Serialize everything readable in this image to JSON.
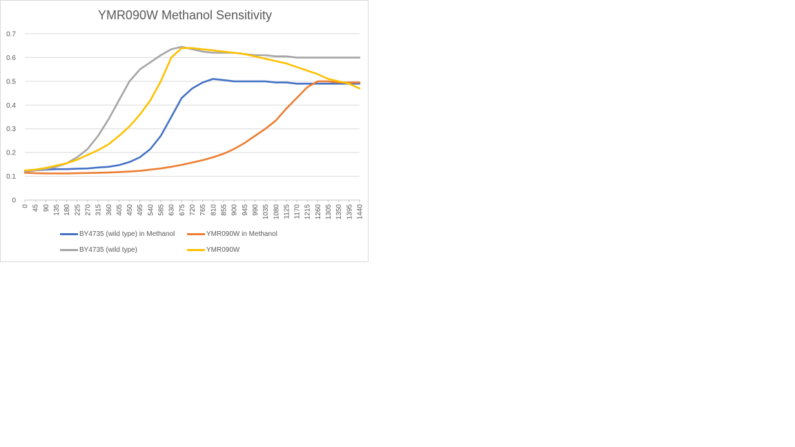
{
  "chart_data": {
    "type": "line",
    "title": "YMR090W Methanol Sensitivity",
    "xlabel": "",
    "ylabel": "",
    "ylim": [
      0,
      0.7
    ],
    "xlim": [
      0,
      1440
    ],
    "yticks": [
      "0",
      "0.1",
      "0.2",
      "0.3",
      "0.4",
      "0.5",
      "0.6",
      "0.7"
    ],
    "xticks": [
      "0",
      "45",
      "90",
      "135",
      "180",
      "225",
      "270",
      "315",
      "360",
      "405",
      "450",
      "495",
      "540",
      "585",
      "630",
      "675",
      "720",
      "765",
      "810",
      "855",
      "900",
      "945",
      "990",
      "1035",
      "1080",
      "1125",
      "1170",
      "1215",
      "1260",
      "1305",
      "1350",
      "1395",
      "1440"
    ],
    "grid": "horizontal",
    "legend_position": "bottom",
    "series": [
      {
        "name": "BY4735 (wild type) in Methanol",
        "color": "#4472C4",
        "x": [
          0,
          45,
          90,
          135,
          180,
          225,
          270,
          315,
          360,
          405,
          450,
          495,
          540,
          585,
          630,
          675,
          720,
          765,
          810,
          855,
          900,
          945,
          990,
          1035,
          1080,
          1125,
          1170,
          1215,
          1260,
          1305,
          1350,
          1395,
          1440
        ],
        "y": [
          0.12,
          0.125,
          0.128,
          0.13,
          0.13,
          0.132,
          0.133,
          0.137,
          0.14,
          0.147,
          0.16,
          0.18,
          0.215,
          0.27,
          0.35,
          0.43,
          0.47,
          0.495,
          0.51,
          0.505,
          0.5,
          0.5,
          0.5,
          0.5,
          0.495,
          0.495,
          0.49,
          0.49,
          0.49,
          0.49,
          0.49,
          0.49,
          0.49
        ]
      },
      {
        "name": "YMR090W in Methanol",
        "color": "#ED7D31",
        "x": [
          0,
          45,
          90,
          135,
          180,
          225,
          270,
          315,
          360,
          405,
          450,
          495,
          540,
          585,
          630,
          675,
          720,
          765,
          810,
          855,
          900,
          945,
          990,
          1035,
          1080,
          1125,
          1170,
          1215,
          1260,
          1305,
          1350,
          1395,
          1440
        ],
        "y": [
          0.115,
          0.113,
          0.112,
          0.112,
          0.112,
          0.113,
          0.114,
          0.115,
          0.116,
          0.118,
          0.12,
          0.123,
          0.128,
          0.133,
          0.14,
          0.148,
          0.158,
          0.168,
          0.18,
          0.195,
          0.215,
          0.24,
          0.27,
          0.3,
          0.335,
          0.385,
          0.43,
          0.475,
          0.5,
          0.5,
          0.495,
          0.495,
          0.495
        ]
      },
      {
        "name": "BY4735 (wild type)",
        "color": "#A5A5A5",
        "x": [
          0,
          45,
          90,
          135,
          180,
          225,
          270,
          315,
          360,
          405,
          450,
          495,
          540,
          585,
          630,
          675,
          720,
          765,
          810,
          855,
          900,
          945,
          990,
          1035,
          1080,
          1125,
          1170,
          1215,
          1260,
          1305,
          1350,
          1395,
          1440
        ],
        "y": [
          0.12,
          0.125,
          0.13,
          0.14,
          0.155,
          0.18,
          0.215,
          0.27,
          0.34,
          0.42,
          0.5,
          0.55,
          0.58,
          0.61,
          0.635,
          0.645,
          0.635,
          0.625,
          0.62,
          0.62,
          0.62,
          0.615,
          0.61,
          0.61,
          0.605,
          0.605,
          0.6,
          0.6,
          0.6,
          0.6,
          0.6,
          0.6,
          0.6
        ]
      },
      {
        "name": "YMR090W",
        "color": "#FFC000",
        "x": [
          0,
          45,
          90,
          135,
          180,
          225,
          270,
          315,
          360,
          405,
          450,
          495,
          540,
          585,
          630,
          675,
          720,
          765,
          810,
          855,
          900,
          945,
          990,
          1035,
          1080,
          1125,
          1170,
          1215,
          1260,
          1305,
          1350,
          1395,
          1440
        ],
        "y": [
          0.125,
          0.128,
          0.135,
          0.145,
          0.155,
          0.17,
          0.19,
          0.21,
          0.235,
          0.27,
          0.31,
          0.36,
          0.42,
          0.5,
          0.6,
          0.64,
          0.64,
          0.635,
          0.63,
          0.625,
          0.62,
          0.615,
          0.605,
          0.595,
          0.585,
          0.575,
          0.56,
          0.545,
          0.53,
          0.51,
          0.5,
          0.49,
          0.47
        ]
      }
    ]
  }
}
